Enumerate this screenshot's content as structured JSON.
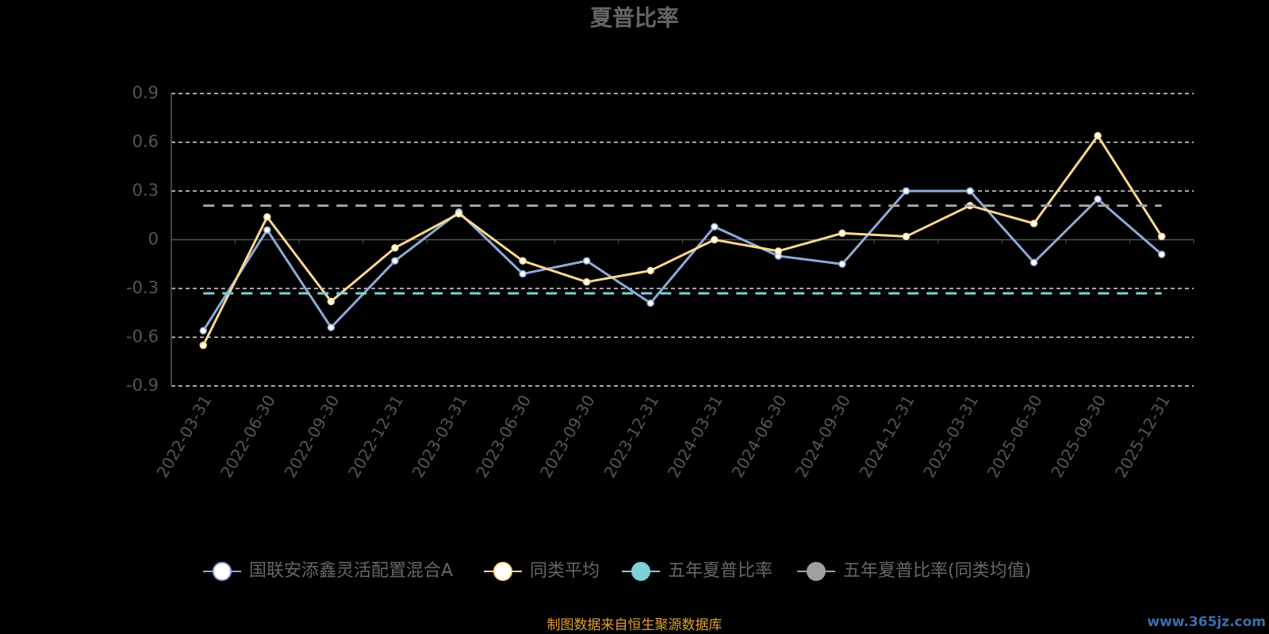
{
  "chart_data": {
    "type": "line",
    "title": "夏普比率",
    "categories": [
      "2022-03-31",
      "2022-06-30",
      "2022-09-30",
      "2022-12-31",
      "2023-03-31",
      "2023-06-30",
      "2023-09-30",
      "2023-12-31",
      "2024-03-31",
      "2024-06-30",
      "2024-09-30",
      "2024-12-31",
      "2025-03-31",
      "2025-06-30",
      "2025-09-30",
      "2025-12-31"
    ],
    "series": [
      {
        "name": "国联安添鑫灵活配置混合A",
        "color": "#8eaad8",
        "values": [
          -0.56,
          0.06,
          -0.54,
          -0.13,
          0.17,
          -0.21,
          -0.13,
          -0.39,
          0.08,
          -0.1,
          -0.15,
          0.3,
          0.3,
          -0.14,
          0.25,
          -0.09
        ]
      },
      {
        "name": "同类平均",
        "color": "#fbd88f",
        "values": [
          -0.65,
          0.14,
          -0.38,
          -0.05,
          0.16,
          -0.13,
          -0.26,
          -0.19,
          0.0,
          -0.07,
          0.04,
          0.02,
          0.21,
          0.1,
          0.64,
          0.02
        ]
      },
      {
        "name": "五年夏普比率",
        "color": "#7ecfd6",
        "value": -0.33
      },
      {
        "name": "五年夏普比率(同类均值)",
        "color": "#a0a0a0",
        "value": 0.21
      }
    ],
    "ylim": [
      -0.9,
      0.9
    ],
    "yticks": [
      -0.9,
      -0.6,
      -0.3,
      0,
      0.3,
      0.6,
      0.9
    ],
    "grid": true
  },
  "footer": {
    "source": "制图数据来自恒生聚源数据库",
    "watermark": "www.365jz.com"
  }
}
